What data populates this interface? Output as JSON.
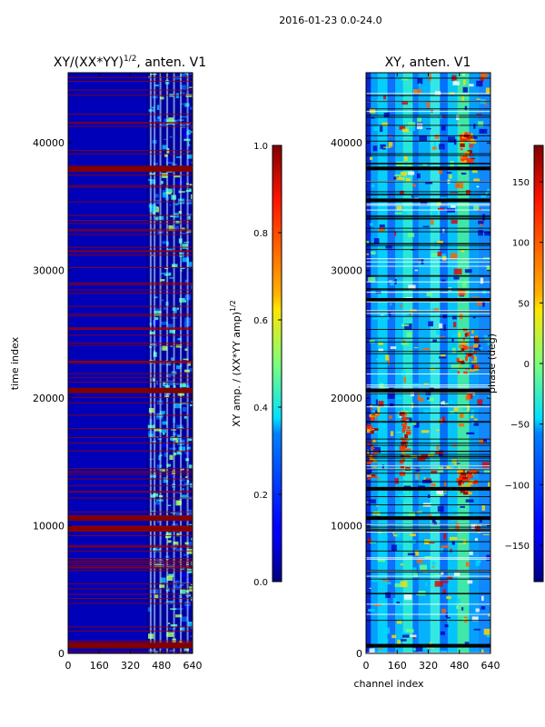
{
  "suptitle": "2016-01-23 0.0-24.0",
  "chart_data": [
    {
      "type": "heatmap",
      "title_prefix": "XY/(XX*YY)",
      "title_exponent": "1/2",
      "title_suffix": ", anten. V1",
      "xlabel": "",
      "ylabel": "time index",
      "xlim": [
        0,
        640
      ],
      "ylim": [
        0,
        45500
      ],
      "xticks": [
        0,
        160,
        320,
        480,
        640
      ],
      "yticks": [
        0,
        10000,
        20000,
        30000,
        40000
      ],
      "colormap": "jet",
      "colorbar": {
        "label_prefix": "XY amp. / (XX*YY amp)",
        "label_exponent": "1/2",
        "vmin": 0.0,
        "vmax": 1.0,
        "ticks": [
          "0.0",
          "0.2",
          "0.4",
          "0.6",
          "0.8",
          "1.0"
        ]
      }
    },
    {
      "type": "heatmap",
      "title": "XY, anten. V1",
      "xlabel": "channel index",
      "ylabel": "",
      "xlim": [
        0,
        640
      ],
      "ylim": [
        0,
        45500
      ],
      "xticks": [
        0,
        160,
        320,
        480,
        640
      ],
      "yticks": [
        0,
        10000,
        20000,
        30000,
        40000
      ],
      "colormap": "jet",
      "colorbar": {
        "label": "phase (deg)",
        "vmin": -180,
        "vmax": 180,
        "ticks": [
          "−150",
          "−100",
          "−50",
          "0",
          "50",
          "100",
          "150"
        ]
      }
    }
  ]
}
